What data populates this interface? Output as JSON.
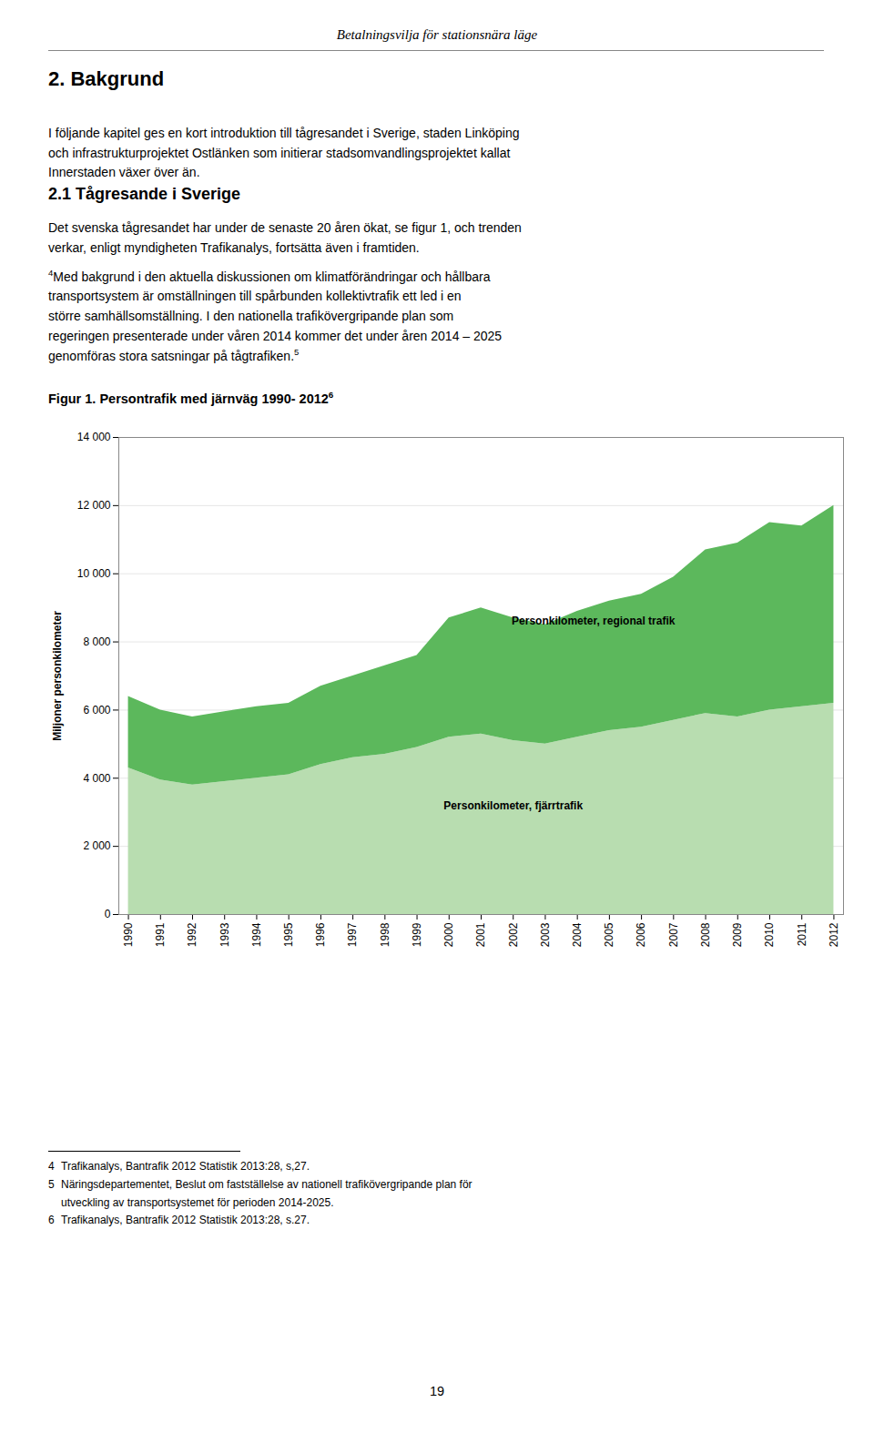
{
  "page_title": "Betalningsvilja för stationsnära läge",
  "section_title": "2. Bakgrund",
  "intro": [
    "I följande kapitel ges en kort introduktion till tågresandet i Sverige, staden Linköping",
    "och infrastrukturprojektet Ostlänken som initierar stadsomvandlingsprojektet kallat",
    "Innerstaden växer över än."
  ],
  "subsection_title": "2.1 Tågresande i Sverige",
  "paragraphs": [
    {
      "lines": [
        "Det svenska tågresandet har under de senaste 20 åren ökat, se figur 1, och trenden",
        "verkar, enligt myndigheten Trafikanalys, fortsätta även i framtiden."
      ]
    },
    {
      "note_before": "4",
      "note_after": "5",
      "lines": [
        "Med bakgrund i den aktuella diskussionen om klimatförändringar och hållbara",
        "transportsystem är omställningen till spårbunden kollektivtrafik ett led i en",
        "större samhällsomställning. I den nationella trafikövergripande plan som",
        "regeringen presenterade under våren 2014 kommer det under åren 2014 – 2025",
        "genomföras stora satsningar på tågtrafiken."
      ]
    }
  ],
  "caption_note": "6",
  "footnotes": [
    {
      "mark": "4",
      "lines": [
        "Trafikanalys, Bantrafik 2012 Statistik 2013:28, s,27."
      ]
    },
    {
      "mark": "5",
      "lines": [
        "Näringsdepartementet, Beslut om fastställelse av nationell trafikövergripande plan för",
        "utveckling av transportsystemet för perioden 2014-2025."
      ]
    },
    {
      "mark": "6",
      "lines": [
        "Trafikanalys, Bantrafik 2012 Statistik 2013:28, s.27."
      ]
    }
  ],
  "page_number": "19",
  "chart_data": {
    "type": "area",
    "stacked": true,
    "title": "Figur 1. Persontrafik med järnväg 1990- 2012",
    "ylabel": "Miljoner personkilometer",
    "x": [
      1990,
      1991,
      1992,
      1993,
      1994,
      1995,
      1996,
      1997,
      1998,
      1999,
      2000,
      2001,
      2002,
      2003,
      2004,
      2005,
      2006,
      2007,
      2008,
      2009,
      2010,
      2011,
      2012
    ],
    "series": [
      {
        "name": "Personkilometer, fjärrtrafik",
        "color": "#b8ddb0",
        "values": [
          4300,
          3950,
          3800,
          3900,
          4000,
          4100,
          4400,
          4600,
          4700,
          4900,
          5200,
          5300,
          5100,
          5000,
          5200,
          5400,
          5500,
          5700,
          5900,
          5800,
          6000,
          6100,
          6200
        ]
      },
      {
        "name": "Personkilometer, regional trafik",
        "color": "#5cb85c",
        "values": [
          2100,
          2050,
          2000,
          2050,
          2100,
          2100,
          2300,
          2400,
          2600,
          2700,
          3500,
          3700,
          3600,
          3500,
          3700,
          3800,
          3900,
          4200,
          4800,
          5100,
          5500,
          5300,
          5800
        ]
      }
    ],
    "annotations": [
      {
        "text": "Personkilometer, regional trafik",
        "x": 2004.5,
        "y": 8600
      },
      {
        "text": "Personkilometer, fjärrtrafik",
        "x": 2002.0,
        "y": 3200
      }
    ],
    "xlim": [
      1989.7,
      2012.3
    ],
    "xticks": [
      1990,
      1991,
      1992,
      1993,
      1994,
      1995,
      1996,
      1997,
      1998,
      1999,
      2000,
      2001,
      2002,
      2003,
      2004,
      2005,
      2006,
      2007,
      2008,
      2009,
      2010,
      2011,
      2012
    ],
    "ylim": [
      0,
      14000
    ],
    "yticks": [
      0,
      {
        "value": 2000,
        "label": "2 000"
      },
      {
        "value": 4000,
        "label": "4 000"
      },
      {
        "value": 6000,
        "label": "6 000"
      },
      {
        "value": 8000,
        "label": "8 000"
      },
      {
        "value": 10000,
        "label": "10 000"
      },
      {
        "value": 12000,
        "label": "12 000"
      },
      {
        "value": 14000,
        "label": "14 000"
      }
    ],
    "grid": true
  }
}
